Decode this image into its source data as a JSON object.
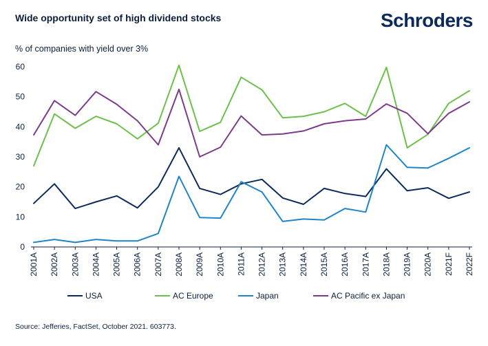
{
  "header": {
    "title": "Wide opportunity set of high dividend stocks",
    "logo": "Schroders",
    "subtitle": "% of companies with yield over 3%"
  },
  "footer": {
    "source": "Source: Jefferies, FactSet, October 2021. 603773."
  },
  "colors": {
    "usa": "#0b2a5b",
    "ac_europe": "#6cc04a",
    "japan": "#1f84c6",
    "ac_pacific_ex_japan": "#7b3a8b",
    "axis": "#0b1f3a"
  },
  "chart_data": {
    "type": "line",
    "title": "Wide opportunity set of high dividend stocks",
    "ylabel": "% of companies with yield over 3%",
    "xlabel": "",
    "ylim": [
      0,
      60
    ],
    "yticks": [
      0,
      10,
      20,
      30,
      40,
      50,
      60
    ],
    "grid": false,
    "legend": "bottom",
    "categories": [
      "2001A",
      "2002A",
      "2003A",
      "2004A",
      "2005A",
      "2006A",
      "2007A",
      "2008A",
      "2009A",
      "2010A",
      "2011A",
      "2012A",
      "2013A",
      "2014A",
      "2015A",
      "2016A",
      "2017A",
      "2018A",
      "2019A",
      "2020A",
      "2021F",
      "2022F"
    ],
    "series": [
      {
        "name": "USA",
        "color": "#0b2a5b",
        "values": [
          14.5,
          21,
          12.8,
          15,
          17,
          13,
          20,
          33,
          19.5,
          17.5,
          21,
          22.5,
          16.3,
          14.2,
          19.5,
          17.8,
          16.8,
          26,
          18.7,
          19.7,
          16.2,
          18.3
        ]
      },
      {
        "name": "AC Europe",
        "color": "#6cc04a",
        "values": [
          27,
          44.3,
          39.5,
          43.5,
          41,
          36,
          41.2,
          60.5,
          38.5,
          41.5,
          56.5,
          52.3,
          43,
          43.5,
          45,
          47.8,
          43.5,
          59.8,
          33,
          37.5,
          47.8,
          52
        ]
      },
      {
        "name": "Japan",
        "color": "#1f84c6",
        "values": [
          1.5,
          2.5,
          1.5,
          2.5,
          2,
          2,
          4.5,
          23.5,
          9.8,
          9.6,
          21.7,
          18.3,
          8.5,
          9.3,
          9,
          12.8,
          11.6,
          34,
          26.5,
          26.3,
          29.5,
          33
        ]
      },
      {
        "name": "AC Pacific ex Japan",
        "color": "#7b3a8b",
        "values": [
          37.3,
          48.7,
          43.8,
          51.7,
          47.5,
          42,
          34,
          52.5,
          30,
          33.2,
          43.6,
          37.3,
          37.6,
          38.6,
          41,
          42,
          42.6,
          47.6,
          44.5,
          37.7,
          44.5,
          48.3
        ]
      }
    ]
  }
}
